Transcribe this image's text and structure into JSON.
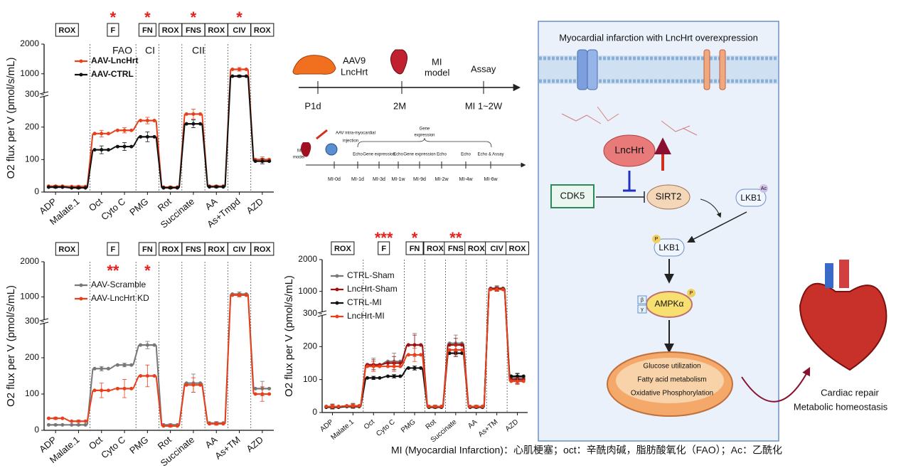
{
  "chart_data": [
    {
      "type": "line",
      "ylabel": "O2 flux per V (pmol/s/mL)",
      "categories": [
        "ADP",
        "Malate.1",
        "Oct",
        "Cyto C",
        "PMG",
        "Rot",
        "Succinate",
        "AA",
        "As+Tmpd",
        "AZD"
      ],
      "ylim": [
        0,
        2000
      ],
      "yticks": [
        0,
        100,
        200,
        300,
        1000,
        2000
      ],
      "y_break": 300,
      "protocol": [
        {
          "label": "ROX"
        },
        {
          "label": "F",
          "stars": "*"
        },
        {
          "label": "FN",
          "stars": "*"
        },
        {
          "label": "ROX"
        },
        {
          "label": "FNS",
          "stars": "*"
        },
        {
          "label": "ROX"
        },
        {
          "label": "CIV",
          "stars": "*"
        },
        {
          "label": "ROX"
        }
      ],
      "annotations": [
        "FAO",
        "CI",
        "CII"
      ],
      "series": [
        {
          "name": "AAV-LncHrt",
          "color": "#e8401c",
          "values": [
            18,
            17,
            180,
            190,
            220,
            15,
            240,
            18,
            1150,
            100
          ],
          "errors": [
            3,
            3,
            10,
            8,
            10,
            3,
            15,
            3,
            60,
            8
          ]
        },
        {
          "name": "AAV-CTRL",
          "color": "#111111",
          "values": [
            15,
            13,
            130,
            140,
            170,
            13,
            210,
            16,
            920,
            95
          ],
          "errors": [
            3,
            3,
            12,
            12,
            15,
            3,
            12,
            3,
            40,
            8
          ]
        }
      ]
    },
    {
      "type": "line",
      "ylabel": "O2 flux per V (pmol/s/mL)",
      "categories": [
        "ADP",
        "Malate.1",
        "Oct",
        "Cyto C",
        "PMG",
        "Rot",
        "Succinate",
        "AA",
        "As+TM",
        "AZD"
      ],
      "ylim": [
        0,
        2000
      ],
      "yticks": [
        0,
        100,
        200,
        300,
        1000,
        2000
      ],
      "y_break": 300,
      "protocol": [
        {
          "label": "ROX"
        },
        {
          "label": "F",
          "stars": "**"
        },
        {
          "label": "FN",
          "stars": "*"
        },
        {
          "label": "ROX"
        },
        {
          "label": "FNS"
        },
        {
          "label": "ROX"
        },
        {
          "label": "CIV"
        },
        {
          "label": "ROX"
        }
      ],
      "series": [
        {
          "name": "AAV-Scramble",
          "color": "#777777",
          "values": [
            15,
            15,
            170,
            180,
            235,
            15,
            130,
            20,
            1080,
            115
          ],
          "errors": [
            2,
            2,
            6,
            5,
            10,
            3,
            25,
            4,
            60,
            20
          ]
        },
        {
          "name": "AAV-LncHrt KD",
          "color": "#e8401c",
          "values": [
            33,
            25,
            110,
            115,
            150,
            12,
            125,
            18,
            1050,
            100
          ],
          "errors": [
            3,
            3,
            20,
            25,
            30,
            3,
            20,
            4,
            50,
            20
          ]
        }
      ]
    },
    {
      "type": "line",
      "ylabel": "O2 flux per V (pmol/s/mL)",
      "categories": [
        "ADP",
        "Malate.1",
        "Oct",
        "Cyto C",
        "PMG",
        "Rot",
        "Succinate",
        "AA",
        "As+TM",
        "AZD"
      ],
      "ylim": [
        0,
        2000
      ],
      "yticks": [
        0,
        100,
        200,
        300,
        1000,
        2000
      ],
      "y_break": 300,
      "protocol": [
        {
          "label": "ROX"
        },
        {
          "label": "F",
          "stars": "***"
        },
        {
          "label": "FN",
          "stars": "*"
        },
        {
          "label": "ROX"
        },
        {
          "label": "FNS",
          "stars": "**"
        },
        {
          "label": "ROX"
        },
        {
          "label": "CIV"
        },
        {
          "label": "ROX"
        }
      ],
      "series": [
        {
          "name": "CTRL-Sham",
          "color": "#777777",
          "values": [
            18,
            20,
            145,
            155,
            205,
            18,
            210,
            18,
            1100,
            105
          ],
          "errors": [
            8,
            8,
            20,
            25,
            35,
            4,
            25,
            4,
            80,
            15
          ]
        },
        {
          "name": "LncHrt-Sham",
          "color": "#a01010",
          "values": [
            18,
            20,
            145,
            150,
            205,
            18,
            205,
            18,
            1080,
            100
          ],
          "errors": [
            6,
            6,
            15,
            20,
            30,
            4,
            20,
            4,
            70,
            12
          ]
        },
        {
          "name": "CTRL-MI",
          "color": "#111111",
          "values": [
            16,
            18,
            105,
            110,
            135,
            16,
            180,
            16,
            1070,
            110
          ],
          "errors": [
            4,
            4,
            5,
            5,
            6,
            3,
            10,
            3,
            60,
            8
          ]
        },
        {
          "name": "LncHrt-MI",
          "color": "#e8401c",
          "values": [
            18,
            20,
            140,
            140,
            175,
            18,
            190,
            18,
            1060,
            95
          ],
          "errors": [
            5,
            5,
            15,
            15,
            20,
            3,
            15,
            3,
            60,
            10
          ]
        }
      ]
    }
  ],
  "timeline": {
    "vector": "AAV9",
    "vector2": "LncHrt",
    "mi": "MI",
    "model": "model",
    "assay": "Assay",
    "ticks": [
      "P1d",
      "2M",
      "MI 1~2W"
    ]
  },
  "timeline2": {
    "mi": "MI",
    "model": "model",
    "injection": "AAV intra-myocardial",
    "injection2": "injection",
    "gene": "Gene",
    "gene2": "expression",
    "events": [
      "Echo",
      "Gene expression",
      "Echo",
      "Gene expression",
      "Echo",
      "Echo",
      "Echo & Assay"
    ],
    "ticks": [
      "MI-0d",
      "MI-1d",
      "MI-3d",
      "MI-1w",
      "MI-9d",
      "MI-2w",
      "MI-4w",
      "MI-6w"
    ]
  },
  "pathway": {
    "title": "Myocardial infarction with LncHrt overexpression",
    "lncrna": "LncHrt",
    "sirt2": "SIRT2",
    "cdk5": "CDK5",
    "lkb1_ac": "LKB1",
    "ac": "Ac",
    "p1": "P",
    "lkb1_p": "LKB1",
    "ampk": "AMPKα",
    "beta": "β",
    "gamma": "γ",
    "p2": "P",
    "mito": [
      "Glucose utilization",
      "Fatty acid metabolism",
      "Oxidative Phosphorylation"
    ],
    "outcome": [
      "Cardiac repair",
      "Metabolic homeostasis"
    ]
  },
  "caption": "MI (Myocardial Infarction)：心肌梗塞；oct：辛酰肉碱，脂肪酸氧化（FAO）；Ac：乙酰化"
}
